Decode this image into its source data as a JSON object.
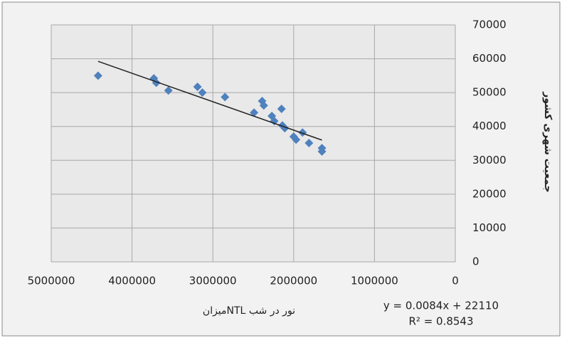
{
  "chart_data": {
    "type": "scatter",
    "x_label": "میزانNTL نور در شب",
    "y_label": "جمعیت شهری کشور",
    "equation": "y = 0.0084x + 22110",
    "r_squared": "R² = 0.8543",
    "x_reversed": true,
    "y_axis_side": "right",
    "grid": true,
    "xlim": [
      0,
      5000000
    ],
    "xticks": [
      5000000,
      4000000,
      3000000,
      2000000,
      1000000,
      0
    ],
    "ylim": [
      0,
      70000
    ],
    "yticks": [
      0,
      10000,
      20000,
      30000,
      40000,
      50000,
      60000,
      70000
    ],
    "trendline": {
      "slope": 0.0084,
      "intercept": 22110,
      "color": "#222222"
    },
    "series": [
      {
        "color": "#4f81bd",
        "x": [
          4420000,
          3730000,
          3700000,
          3550000,
          3190000,
          3130000,
          2850000,
          2490000,
          2390000,
          2370000,
          2270000,
          2240000,
          2150000,
          2140000,
          2110000,
          2000000,
          1970000,
          1890000,
          1810000,
          1650000,
          1650000
        ],
        "values": [
          55000,
          54200,
          52900,
          50600,
          51700,
          50000,
          48700,
          44100,
          47500,
          46200,
          43100,
          41600,
          45200,
          40300,
          39500,
          37000,
          36100,
          38200,
          35100,
          33600,
          32600
        ]
      }
    ]
  }
}
